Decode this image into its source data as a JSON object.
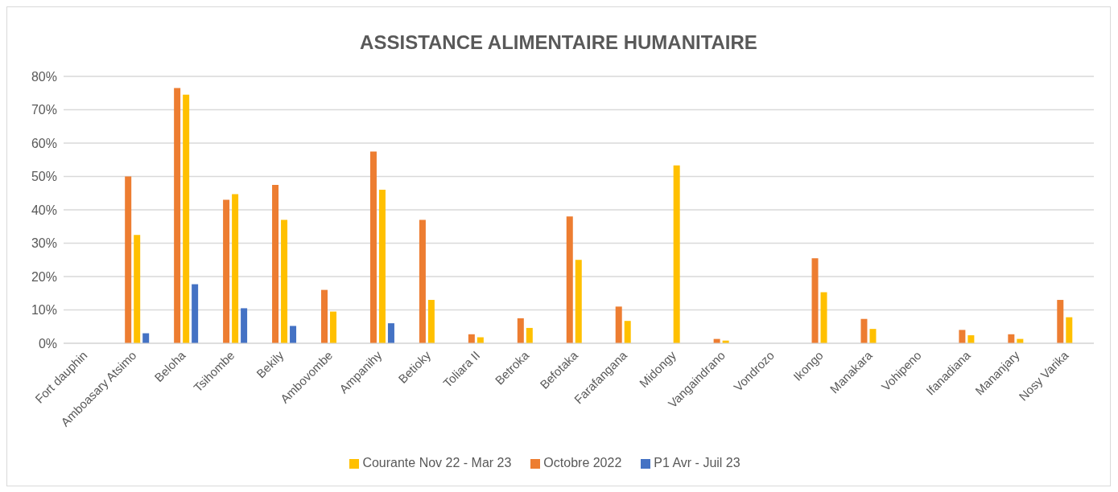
{
  "chart_data": {
    "type": "bar",
    "title": "ASSISTANCE ALIMENTAIRE HUMANITAIRE",
    "categories": [
      "Fort dauphin",
      "Amboasary Atsimo",
      "Beloha",
      "Tsihombe",
      "Bekily",
      "Ambovombe",
      "Ampanihy",
      "Betioky",
      "Toliara II",
      "Betroka",
      "Befotaka",
      "Farafangana",
      "Midongy",
      "Vangaindrano",
      "Vondrozo",
      "Ikongo",
      "Manakara",
      "Vohipeno",
      "Ifanadiana",
      "Mananjary",
      "Nosy Varika"
    ],
    "series": [
      {
        "name": "Octobre 2022",
        "color": "#ed7d31",
        "values": [
          null,
          50,
          76.5,
          43,
          47.5,
          16,
          57.5,
          37,
          2.7,
          7.5,
          38,
          11,
          null,
          1.3,
          null,
          25.5,
          7.3,
          null,
          4,
          2.7,
          13
        ]
      },
      {
        "name": "Courante Nov 22 - Mar 23",
        "color": "#ffc000",
        "values": [
          null,
          32.5,
          74.5,
          44.7,
          37,
          9.5,
          46,
          13,
          1.8,
          4.6,
          25,
          6.7,
          53.3,
          0.8,
          null,
          15.3,
          4.3,
          null,
          2.4,
          1.3,
          7.8
        ]
      },
      {
        "name": "P1 Avr - Juil 23",
        "color": "#4472c4",
        "values": [
          null,
          3,
          17.7,
          10.5,
          5.2,
          null,
          6,
          null,
          null,
          null,
          null,
          null,
          null,
          null,
          null,
          null,
          null,
          null,
          null,
          null,
          null
        ]
      }
    ],
    "ylim": [
      0,
      80
    ],
    "yticks": [
      {
        "value": 0,
        "label": "0%"
      },
      {
        "value": 10,
        "label": "10%"
      },
      {
        "value": 20,
        "label": "20%"
      },
      {
        "value": 30,
        "label": "30%"
      },
      {
        "value": 40,
        "label": "40%"
      },
      {
        "value": 50,
        "label": "50%"
      },
      {
        "value": 60,
        "label": "60%"
      },
      {
        "value": 70,
        "label": "70%"
      },
      {
        "value": 80,
        "label": "80%"
      }
    ],
    "grid": "y",
    "legend": "bottom"
  }
}
